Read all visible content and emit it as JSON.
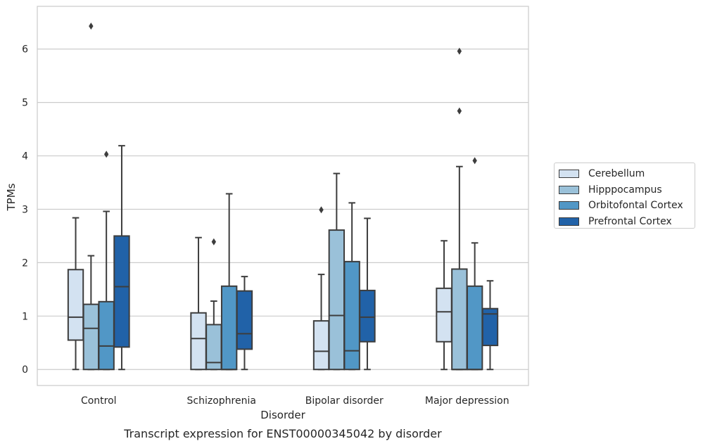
{
  "chart_data": {
    "type": "box",
    "xlabel": "Disorder",
    "ylabel": "TPMs",
    "caption": "Transcript expression for ENST00000345042 by disorder",
    "ylim": [
      -0.3,
      6.8
    ],
    "yticks": [
      0,
      1,
      2,
      3,
      4,
      5,
      6
    ],
    "grid": "horizontal",
    "legend_placement": "right",
    "categories": [
      "Control",
      "Schizophrenia",
      "Bipolar disorder",
      "Major depression"
    ],
    "series": [
      {
        "name": "Cerebellum",
        "color": "#d3e2f1",
        "boxes": [
          {
            "whisker_low": 0.0,
            "q1": 0.55,
            "median": 0.98,
            "q3": 1.87,
            "whisker_high": 2.84,
            "outliers": []
          },
          {
            "whisker_low": 0.0,
            "q1": 0.0,
            "median": 0.58,
            "q3": 1.06,
            "whisker_high": 2.47,
            "outliers": []
          },
          {
            "whisker_low": 0.0,
            "q1": 0.0,
            "median": 0.34,
            "q3": 0.91,
            "whisker_high": 1.78,
            "outliers": [
              2.99
            ]
          },
          {
            "whisker_low": 0.0,
            "q1": 0.52,
            "median": 1.08,
            "q3": 1.52,
            "whisker_high": 2.41,
            "outliers": []
          }
        ]
      },
      {
        "name": "Hipppocampus",
        "color": "#9ac1d9",
        "boxes": [
          {
            "whisker_low": 0.0,
            "q1": 0.0,
            "median": 0.77,
            "q3": 1.22,
            "whisker_high": 2.13,
            "outliers": [
              6.43
            ]
          },
          {
            "whisker_low": 0.0,
            "q1": 0.0,
            "median": 0.13,
            "q3": 0.84,
            "whisker_high": 1.28,
            "outliers": [
              2.39
            ]
          },
          {
            "whisker_low": 0.0,
            "q1": 0.0,
            "median": 1.01,
            "q3": 2.61,
            "whisker_high": 3.67,
            "outliers": []
          },
          {
            "whisker_low": 0.0,
            "q1": 0.0,
            "median": 0.0,
            "q3": 1.88,
            "whisker_high": 3.8,
            "outliers": [
              5.96,
              4.84
            ]
          }
        ]
      },
      {
        "name": "Orbitofontal Cortex",
        "color": "#5197c6",
        "boxes": [
          {
            "whisker_low": 0.0,
            "q1": 0.0,
            "median": 0.44,
            "q3": 1.27,
            "whisker_high": 2.96,
            "outliers": [
              4.03
            ]
          },
          {
            "whisker_low": 0.0,
            "q1": 0.0,
            "median": 0.0,
            "q3": 1.56,
            "whisker_high": 3.29,
            "outliers": []
          },
          {
            "whisker_low": 0.0,
            "q1": 0.0,
            "median": 0.35,
            "q3": 2.02,
            "whisker_high": 3.12,
            "outliers": []
          },
          {
            "whisker_low": 0.0,
            "q1": 0.0,
            "median": 0.0,
            "q3": 1.56,
            "whisker_high": 2.37,
            "outliers": [
              3.91
            ]
          }
        ]
      },
      {
        "name": "Prefrontal Cortex",
        "color": "#2162a8",
        "boxes": [
          {
            "whisker_low": 0.0,
            "q1": 0.42,
            "median": 1.55,
            "q3": 2.5,
            "whisker_high": 4.19,
            "outliers": []
          },
          {
            "whisker_low": 0.0,
            "q1": 0.38,
            "median": 0.67,
            "q3": 1.47,
            "whisker_high": 1.74,
            "outliers": []
          },
          {
            "whisker_low": 0.0,
            "q1": 0.52,
            "median": 0.98,
            "q3": 1.48,
            "whisker_high": 2.83,
            "outliers": []
          },
          {
            "whisker_low": 0.0,
            "q1": 0.45,
            "median": 1.04,
            "q3": 1.14,
            "whisker_high": 1.66,
            "outliers": []
          }
        ]
      }
    ]
  }
}
